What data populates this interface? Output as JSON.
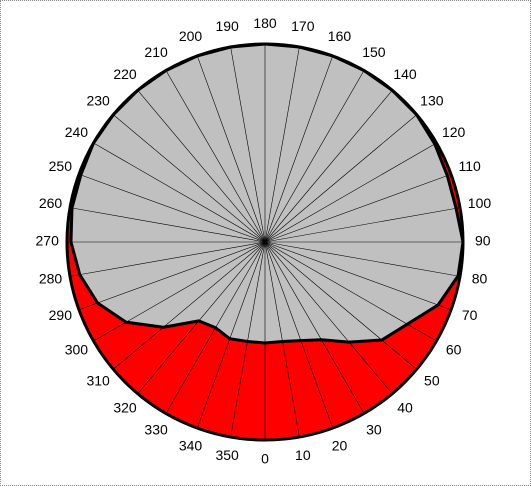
{
  "chart_data": {
    "type": "polar",
    "theta": [
      0,
      10,
      20,
      30,
      40,
      50,
      60,
      70,
      80,
      90,
      100,
      110,
      120,
      130,
      140,
      150,
      160,
      170,
      180,
      190,
      200,
      210,
      220,
      230,
      240,
      250,
      260,
      270,
      280,
      290,
      300,
      310,
      320,
      330,
      340,
      350
    ],
    "values": [
      0.51,
      0.51,
      0.53,
      0.57,
      0.66,
      0.77,
      0.83,
      0.93,
      0.99,
      1.0,
      0.98,
      0.98,
      0.99,
      1.0,
      1.0,
      1.0,
      1.0,
      1.0,
      1.0,
      1.0,
      1.0,
      1.0,
      1.0,
      1.0,
      1.0,
      0.99,
      0.99,
      0.98,
      0.95,
      0.9,
      0.81,
      0.67,
      0.52,
      0.5,
      0.52,
      0.51
    ],
    "fill_color": "#c0c0c0",
    "outer_color": "#ff0000",
    "rlim": [
      0,
      1
    ],
    "thetaticks": [
      0,
      10,
      20,
      30,
      40,
      50,
      60,
      70,
      80,
      90,
      100,
      110,
      120,
      130,
      140,
      150,
      160,
      170,
      180,
      190,
      200,
      210,
      220,
      230,
      240,
      250,
      260,
      270,
      280,
      290,
      300,
      310,
      320,
      330,
      340,
      350
    ]
  }
}
